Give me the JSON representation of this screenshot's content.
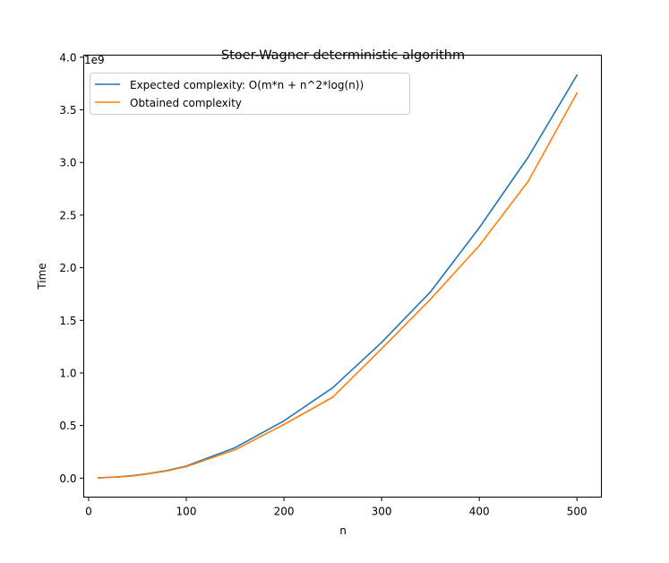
{
  "chart_data": {
    "type": "line",
    "title": "Stoer-Wagner deterministic algorithm",
    "xlabel": "n",
    "ylabel": "Time",
    "y_offset_label": "1e9",
    "xlim": [
      -5,
      525
    ],
    "ylim": [
      -0.18,
      4.02
    ],
    "x_ticks": [
      {
        "value": 0,
        "label": "0"
      },
      {
        "value": 100,
        "label": "100"
      },
      {
        "value": 200,
        "label": "200"
      },
      {
        "value": 300,
        "label": "300"
      },
      {
        "value": 400,
        "label": "400"
      },
      {
        "value": 500,
        "label": "500"
      }
    ],
    "y_ticks": [
      {
        "value": 0.0,
        "label": "0.0"
      },
      {
        "value": 0.5,
        "label": "0.5"
      },
      {
        "value": 1.0,
        "label": "1.0"
      },
      {
        "value": 1.5,
        "label": "1.5"
      },
      {
        "value": 2.0,
        "label": "2.0"
      },
      {
        "value": 2.5,
        "label": "2.5"
      },
      {
        "value": 3.0,
        "label": "3.0"
      },
      {
        "value": 3.5,
        "label": "3.5"
      },
      {
        "value": 4.0,
        "label": "4.0"
      }
    ],
    "grid": false,
    "legend_position": "top-left",
    "series": [
      {
        "name": "Expected complexity: O(m*n + n^2*log(n))",
        "color": "#1f77b4",
        "x": [
          10,
          30,
          45,
          60,
          80,
          100,
          150,
          200,
          250,
          300,
          350,
          400,
          450,
          500
        ],
        "y": [
          0.004,
          0.012,
          0.024,
          0.042,
          0.072,
          0.115,
          0.29,
          0.545,
          0.86,
          1.29,
          1.77,
          2.38,
          3.05,
          3.83
        ]
      },
      {
        "name": "Obtained complexity",
        "color": "#ff7f0e",
        "x": [
          10,
          30,
          45,
          60,
          80,
          100,
          150,
          200,
          250,
          300,
          350,
          400,
          450,
          500
        ],
        "y": [
          0.002,
          0.011,
          0.021,
          0.04,
          0.068,
          0.11,
          0.27,
          0.51,
          0.77,
          1.23,
          1.7,
          2.21,
          2.82,
          3.66
        ]
      }
    ]
  }
}
